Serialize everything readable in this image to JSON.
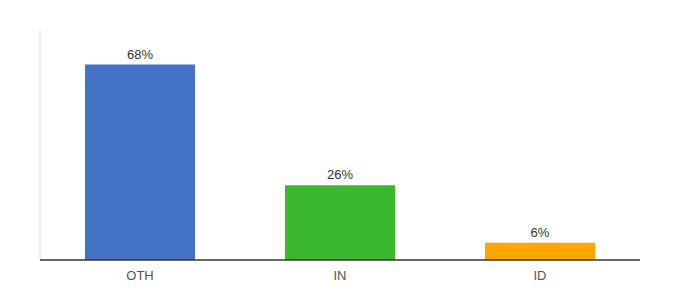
{
  "chart_data": {
    "type": "bar",
    "categories": [
      "OTH",
      "IN",
      "ID"
    ],
    "values": [
      68,
      26,
      6
    ],
    "value_labels": [
      "68%",
      "26%",
      "6%"
    ],
    "colors": [
      "#4472C4",
      "#3CB82E",
      "#FFA500"
    ],
    "ylim": [
      0,
      80
    ],
    "data_labels": true,
    "tick_labels": "x"
  }
}
